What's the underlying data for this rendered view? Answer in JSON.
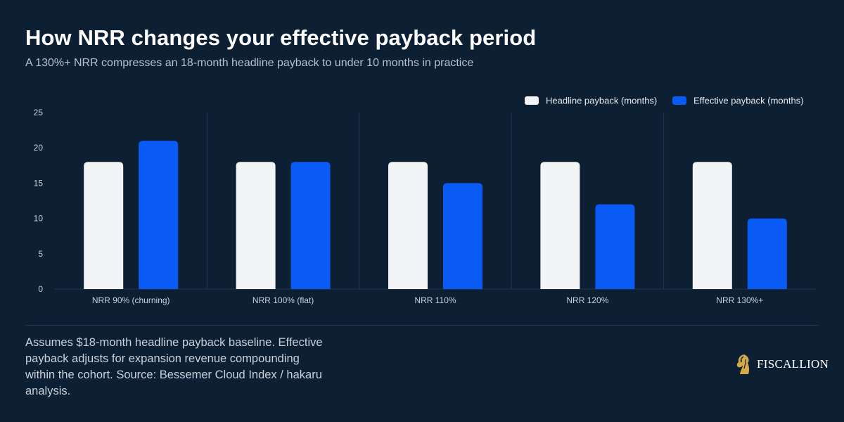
{
  "header": {
    "title": "How NRR changes your effective payback period",
    "subtitle": "A 130%+ NRR compresses an 18-month headline payback to under 10 months in practice"
  },
  "chart_data": {
    "type": "bar",
    "categories": [
      "NRR 90% (churning)",
      "NRR 100% (flat)",
      "NRR 110%",
      "NRR 120%",
      "NRR 130%+"
    ],
    "series": [
      {
        "name": "Headline payback (months)",
        "values": [
          18,
          18,
          18,
          18,
          18
        ],
        "color": "#f3f4f6"
      },
      {
        "name": "Effective payback (months)",
        "values": [
          21,
          18,
          15,
          12,
          10
        ],
        "color": "#0a5af5"
      }
    ],
    "yticks": [
      0,
      5,
      10,
      15,
      20,
      25
    ],
    "ylim": [
      0,
      25
    ],
    "xlabel": "",
    "ylabel": "",
    "legend": "top-right",
    "grid": "vertical separators"
  },
  "footer": {
    "note": "Assumes $18-month headline payback baseline. Effective payback adjusts for expansion revenue compounding within the cohort. Source: Bessemer Cloud Index / hakaru analysis.",
    "brand": "FISCALLION",
    "brand_icon": "horse-head-icon",
    "brand_color": "#d4a94a"
  },
  "colors": {
    "background": "#0d1f33",
    "axis_text": "#c9d1db",
    "separator": "#24364d"
  }
}
